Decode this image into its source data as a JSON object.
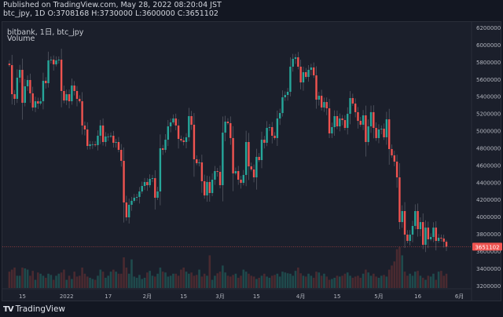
{
  "header": {
    "published": "Published on TradingView.com, May 28, 2022 08:20:04 JST",
    "ohlc": "btc_jpy, 1D O:3708168 H:3730000 L:3600000 C:3651102"
  },
  "legend": {
    "symbol": "bitbank, 1日, btc_jpy",
    "volume": "Volume"
  },
  "footer": {
    "brand": "TradingView"
  },
  "colors": {
    "up": "#26a69a",
    "down": "#ef5350",
    "volume_up": "#1f4a4c",
    "volume_down": "#4a2a30",
    "background": "#1b1f2b"
  },
  "chart_data": {
    "type": "candlestick",
    "interval": "1D",
    "last_date": "2022-05-27",
    "first_open": 5780000,
    "last_candle": {
      "open": 3708168,
      "high": 3730000,
      "low": 3600000,
      "close": 3651102
    },
    "closes": [
      5762000,
      5424000,
      5370000,
      5616000,
      5707000,
      5324000,
      5516000,
      5589000,
      5434000,
      5269000,
      5342000,
      5315000,
      5342000,
      5580000,
      5552000,
      5817000,
      5826000,
      5771000,
      5817000,
      5826000,
      5461000,
      5351000,
      5424000,
      5342000,
      5525000,
      5461000,
      5370000,
      5342000,
      5060000,
      5014000,
      4822000,
      4841000,
      4841000,
      4832000,
      4941000,
      5060000,
      4868000,
      4932000,
      4932000,
      4941000,
      4859000,
      4868000,
      4777000,
      4649000,
      4165000,
      3992000,
      4138000,
      4184000,
      4220000,
      4229000,
      4293000,
      4357000,
      4403000,
      4366000,
      4439000,
      4448000,
      4220000,
      4293000,
      4795000,
      4777000,
      4895000,
      5050000,
      5096000,
      5142000,
      5060000,
      4904000,
      4886000,
      4868000,
      4923000,
      5169000,
      5069000,
      4667000,
      4622000,
      4631000,
      4412000,
      4247000,
      4403000,
      4275000,
      4430000,
      4530000,
      4521000,
      4366000,
      4977000,
      5105000,
      5087000,
      4914000,
      4503000,
      4530000,
      4430000,
      4393000,
      4485000,
      4868000,
      4585000,
      4549000,
      4457000,
      4695000,
      4658000,
      4895000,
      4859000,
      5032000,
      5041000,
      4941000,
      4914000,
      5142000,
      5205000,
      5388000,
      5415000,
      5452000,
      5744000,
      5835000,
      5853000,
      5744000,
      5561000,
      5680000,
      5625000,
      5707000,
      5735000,
      5643000,
      5361000,
      5406000,
      5269000,
      5333000,
      5260000,
      4968000,
      5041000,
      5169000,
      5050000,
      5142000,
      5123000,
      5032000,
      5196000,
      5379000,
      5315000,
      5215000,
      5114000,
      5069000,
      5178000,
      4868000,
      5050000,
      5215000,
      5032000,
      4914000,
      5014000,
      5023000,
      4923000,
      5132000,
      4786000,
      4713000,
      4640000,
      4457000,
      3937000,
      4065000,
      3791000,
      3718000,
      3791000,
      3892000,
      4065000,
      3855000,
      3937000,
      3673000,
      3873000,
      3737000,
      3764000,
      3873000,
      3718000,
      3755000,
      3746000,
      3708168,
      3651102
    ],
    "volume_relative": [
      40,
      45,
      50,
      30,
      30,
      50,
      48,
      45,
      30,
      42,
      20,
      38,
      35,
      30,
      25,
      35,
      32,
      20,
      30,
      35,
      38,
      45,
      20,
      30,
      22,
      40,
      28,
      30,
      50,
      35,
      28,
      25,
      22,
      20,
      30,
      45,
      40,
      25,
      30,
      40,
      45,
      40,
      35,
      35,
      75,
      50,
      35,
      70,
      28,
      25,
      32,
      22,
      25,
      38,
      42,
      30,
      28,
      35,
      50,
      40,
      38,
      28,
      30,
      35,
      35,
      30,
      45,
      50,
      40,
      35,
      38,
      30,
      32,
      45,
      28,
      35,
      30,
      80,
      20,
      30,
      36,
      40,
      55,
      38,
      30,
      28,
      32,
      35,
      25,
      30,
      45,
      40,
      35,
      30,
      28,
      22,
      25,
      30,
      35,
      28,
      25,
      30,
      32,
      35,
      28,
      40,
      38,
      36,
      35,
      30,
      42,
      50,
      36,
      30,
      28,
      35,
      30,
      25,
      40,
      38,
      30,
      35,
      28,
      20,
      22,
      25,
      30,
      28,
      30,
      35,
      38,
      30,
      25,
      28,
      30,
      25,
      35,
      45,
      38,
      30,
      35,
      28,
      25,
      30,
      32,
      28,
      45,
      55,
      65,
      95,
      100,
      80,
      40,
      30,
      35,
      30,
      40,
      42,
      30,
      25,
      20,
      30,
      28,
      35,
      20,
      40,
      42,
      30,
      35
    ],
    "y_axis": {
      "min": 3200000,
      "max": 6200000,
      "ticks": [
        "6200000",
        "6000000",
        "5800000",
        "5600000",
        "5400000",
        "5200000",
        "5000000",
        "4800000",
        "4600000",
        "4400000",
        "4200000",
        "4000000",
        "3800000",
        "3600000",
        "3400000",
        "3200000"
      ]
    },
    "x_axis": {
      "ticks": [
        {
          "label": "15",
          "date": "2021-12-15"
        },
        {
          "label": "2022",
          "date": "2022-01-01"
        },
        {
          "label": "17",
          "date": "2022-01-17"
        },
        {
          "label": "2月",
          "date": "2022-02-01"
        },
        {
          "label": "15",
          "date": "2022-02-15"
        },
        {
          "label": "3月",
          "date": "2022-03-01"
        },
        {
          "label": "15",
          "date": "2022-03-15"
        },
        {
          "label": "4月",
          "date": "2022-04-01"
        },
        {
          "label": "15",
          "date": "2022-04-15"
        },
        {
          "label": "5月",
          "date": "2022-05-01"
        },
        {
          "label": "16",
          "date": "2022-05-16"
        },
        {
          "label": "6月",
          "date": "2022-06-01"
        }
      ]
    },
    "last_price_label": "3651102",
    "grid": false
  }
}
